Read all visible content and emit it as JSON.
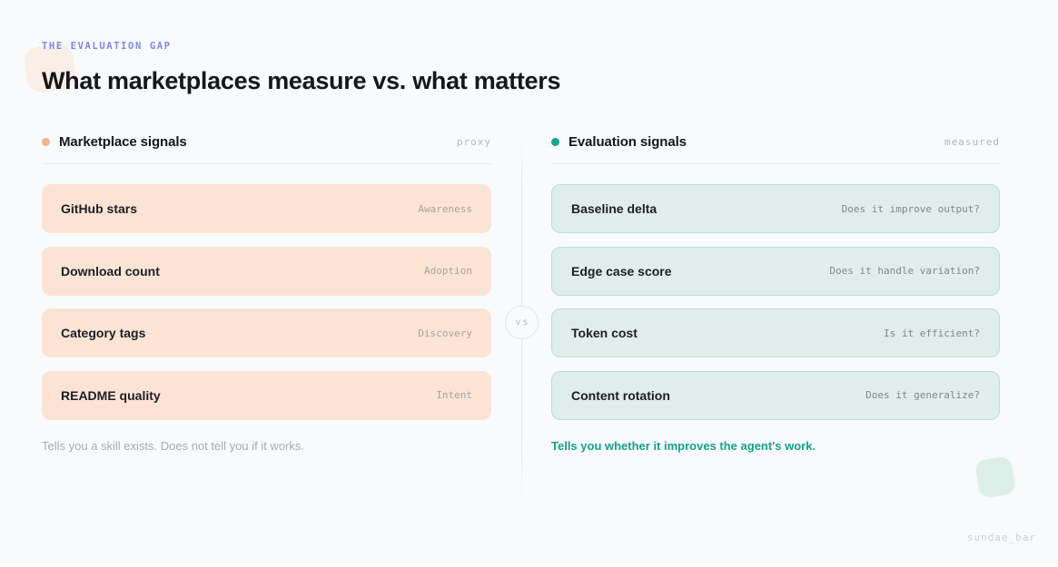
{
  "page": {
    "eyebrow": "THE EVALUATION GAP",
    "title": "What marketplaces measure vs. what matters",
    "vs_label": "vs",
    "watermark": "sundae_bar"
  },
  "left_column": {
    "title": "Marketplace signals",
    "tag": "proxy",
    "cards": [
      {
        "name": "GitHub stars",
        "label": "Awareness"
      },
      {
        "name": "Download count",
        "label": "Adoption"
      },
      {
        "name": "Category tags",
        "label": "Discovery"
      },
      {
        "name": "README quality",
        "label": "Intent"
      }
    ],
    "footnote": "Tells you a skill exists. Does not tell you if it works."
  },
  "right_column": {
    "title": "Evaluation signals",
    "tag": "measured",
    "cards": [
      {
        "name": "Baseline delta",
        "label": "Does it improve output?"
      },
      {
        "name": "Edge case score",
        "label": "Does it handle variation?"
      },
      {
        "name": "Token cost",
        "label": "Is it efficient?"
      },
      {
        "name": "Content rotation",
        "label": "Does it generalize?"
      }
    ],
    "footnote": "Tells you whether it improves the agent's work."
  },
  "colors": {
    "background": "#f8fafb",
    "eyebrow_accent": "#8185ee",
    "left_accent": "#f3b58e",
    "left_card_bg": "#fce4d4",
    "right_accent": "#18a38b",
    "right_card_bg": "#dfeeea",
    "right_card_border": "#bcded4",
    "right_footnote": "#14a18a"
  }
}
